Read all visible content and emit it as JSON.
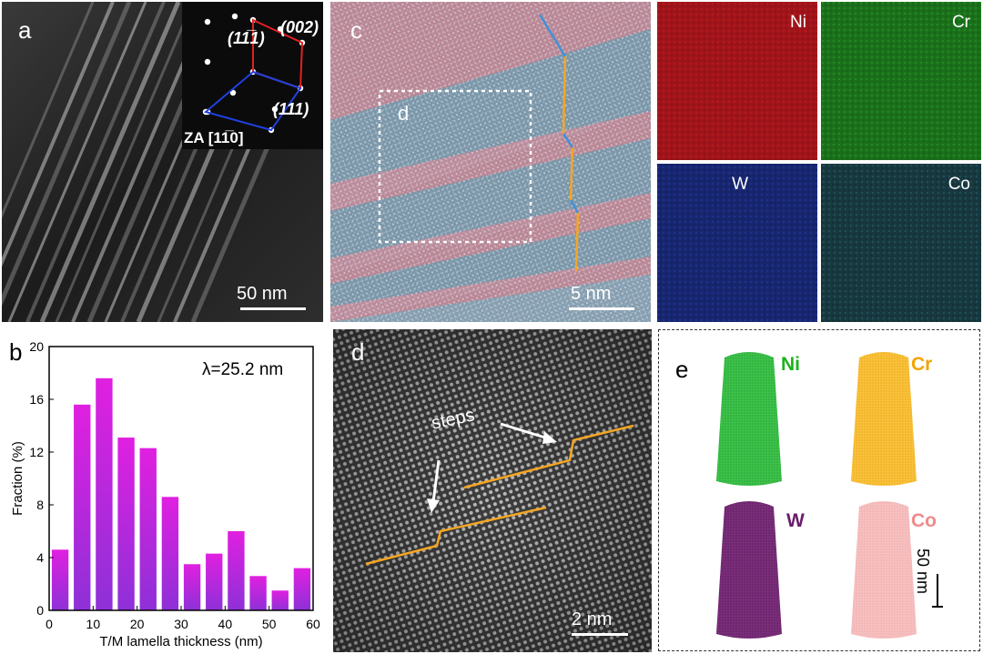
{
  "panel_a": {
    "label": "a",
    "scale_bar": "50 nm",
    "inset": {
      "spots": [
        "(002)",
        "(11̅1)",
        "(111)"
      ],
      "zone_axis": "ZA [11̅0]"
    }
  },
  "panel_b": {
    "label": "b",
    "annotation": "λ=25.2 nm"
  },
  "panel_c": {
    "label": "c",
    "box_label": "d",
    "scale_bar": "5 nm"
  },
  "panel_maps": {
    "tiles": [
      {
        "element": "Ni",
        "color": "#a5141a"
      },
      {
        "element": "Cr",
        "color": "#1f7a1f"
      },
      {
        "element": "W",
        "color": "#1c2c86"
      },
      {
        "element": "Co",
        "color": "#1b4a52"
      }
    ]
  },
  "panel_d": {
    "label": "d",
    "annotation": "steps",
    "scale_bar": "2 nm"
  },
  "panel_e": {
    "label": "e",
    "scale_bar": "50 nm",
    "elements": [
      {
        "name": "Ni",
        "label_color": "#1db31d",
        "body_color": "#3cc24a"
      },
      {
        "name": "Cr",
        "label_color": "#f5a300",
        "body_color": "#f9c23a"
      },
      {
        "name": "W",
        "label_color": "#6b1a6b",
        "body_color": "#7a2e7a"
      },
      {
        "name": "Co",
        "label_color": "#f08a8a",
        "body_color": "#f4b4b4"
      }
    ]
  },
  "chart_data": {
    "type": "bar",
    "xlabel": "T/M lamella thickness (nm)",
    "ylabel": "Fraction (%)",
    "xlim": [
      0,
      60
    ],
    "ylim": [
      0,
      20
    ],
    "xticks": [
      0,
      10,
      20,
      30,
      40,
      50,
      60
    ],
    "yticks": [
      0,
      4,
      8,
      12,
      16,
      20
    ],
    "bin_centers": [
      2.5,
      7.5,
      12.5,
      17.5,
      22.5,
      27.5,
      32.5,
      37.5,
      42.5,
      47.5,
      52.5,
      57.5
    ],
    "bin_width": 3.8,
    "values": [
      4.6,
      15.6,
      17.6,
      13.1,
      12.3,
      8.6,
      3.5,
      4.3,
      6.0,
      2.6,
      1.5,
      3.2
    ],
    "bar_gradient": [
      "#e020e0",
      "#8e30d8"
    ]
  }
}
